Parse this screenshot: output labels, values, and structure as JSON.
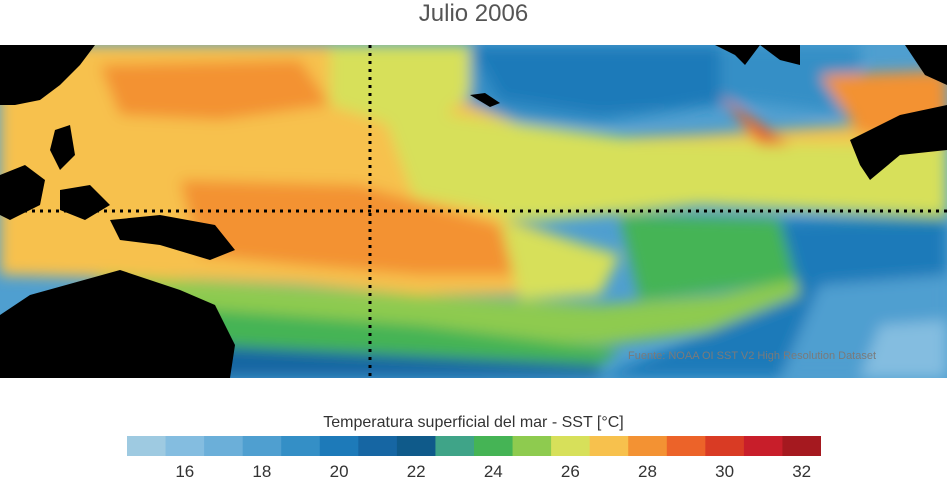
{
  "title": "Julio 2006",
  "source": "Fuente: NOAA OI SST V2 High Resolution Dataset",
  "colorbar": {
    "label": "Temperatura superficial del mar - SST  [°C]",
    "min": 15,
    "step": 1,
    "colors": [
      "#9ecae1",
      "#84bde0",
      "#6bafd9",
      "#4f9fd0",
      "#348fc6",
      "#1d7ab9",
      "#1666a3",
      "#0f5a8a",
      "#3fa488",
      "#45b455",
      "#8ecb4f",
      "#d7e05a",
      "#f7c14d",
      "#f39233",
      "#ec6329",
      "#d93b24",
      "#c81e2a",
      "#a5191f"
    ],
    "ticks": [
      16,
      18,
      20,
      22,
      24,
      26,
      28,
      30,
      32
    ]
  },
  "map": {
    "region": "Pacífico ecuatorial",
    "marked_longitude": "180°",
    "marked_latitude": "0°"
  }
}
